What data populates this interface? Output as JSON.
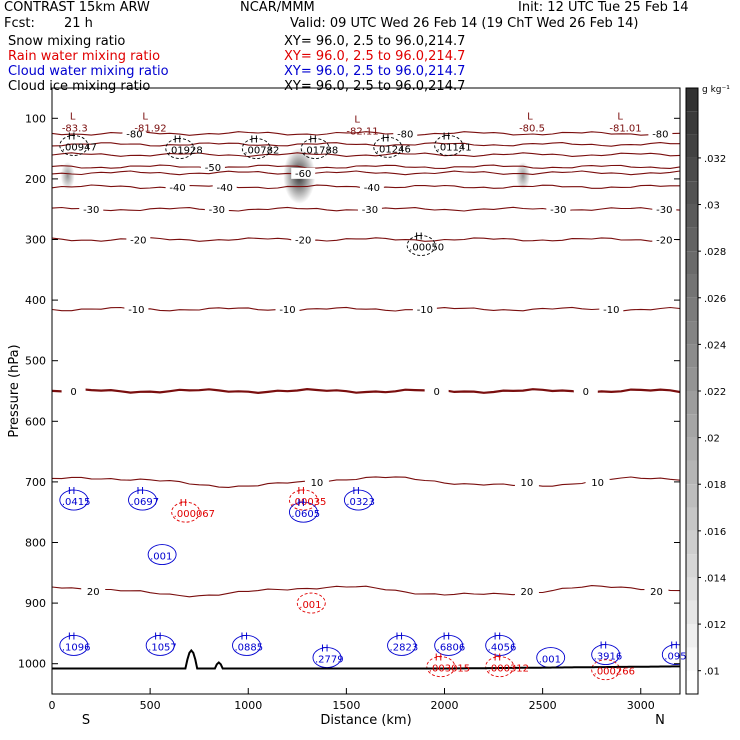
{
  "header": {
    "model": "CONTRAST 15km ARW",
    "org": "NCAR/MMM",
    "init": "Init: 12 UTC Tue 25 Feb 14",
    "fcst_label": "Fcst:",
    "fcst_value": "21 h",
    "valid": "Valid: 09 UTC Wed 26 Feb 14 (19 ChT Wed 26 Feb 14)"
  },
  "fields": [
    {
      "name": "Snow mixing ratio",
      "xy": "XY=  96.0,  2.5 to  96.0,214.7",
      "color": "#000000"
    },
    {
      "name": "Rain water mixing ratio",
      "xy": "XY=  96.0,  2.5 to  96.0,214.7",
      "color": "#e00000"
    },
    {
      "name": "Cloud water mixing ratio",
      "xy": "XY=  96.0,  2.5 to  96.0,214.7",
      "color": "#0000d0"
    },
    {
      "name": "Cloud ice mixing ratio",
      "xy": "XY=  96.0,  2.5 to  96.0,214.7",
      "color": "#000000"
    }
  ],
  "colorbar": {
    "unit": "g kg⁻¹",
    "ticks": [
      ".01",
      ".012",
      ".014",
      ".016",
      ".018",
      ".02",
      ".022",
      ".024",
      ".026",
      ".028",
      ".03",
      ".032"
    ],
    "values": [
      0.01,
      0.012,
      0.014,
      0.016,
      0.018,
      0.02,
      0.022,
      0.024,
      0.026,
      0.028,
      0.03,
      0.032
    ],
    "range": [
      0.009,
      0.035
    ]
  },
  "chart_data": {
    "type": "contour cross-section",
    "xlabel": "Distance (km)",
    "ylabel": "Pressure (hPa)",
    "xlim": [
      0,
      3200
    ],
    "ylim": [
      1050,
      50
    ],
    "x_ticks": [
      0,
      500,
      1000,
      1500,
      2000,
      2500,
      3000
    ],
    "y_ticks": [
      100,
      200,
      300,
      400,
      500,
      600,
      700,
      800,
      900,
      1000
    ],
    "end_labels": {
      "left": "S",
      "right": "N"
    },
    "temperature_contours": [
      {
        "value": -80,
        "label": "-80",
        "p": 125,
        "labels_at": [
          [
            420,
            "-80"
          ],
          [
            1800,
            "-80"
          ],
          [
            3100,
            "-80"
          ]
        ]
      },
      {
        "value": -70,
        "label": "",
        "p": 143
      },
      {
        "value": -60,
        "label": "",
        "p": 160
      },
      {
        "value": -50,
        "label": "-50",
        "p": 180,
        "labels_at": [
          [
            820,
            "-50"
          ]
        ]
      },
      {
        "value": -60,
        "label": "-60",
        "p": 190,
        "labels_at": [
          [
            1280,
            "-60"
          ]
        ]
      },
      {
        "value": -40,
        "label": "-40",
        "p": 213,
        "labels_at": [
          [
            640,
            "-40"
          ],
          [
            880,
            "-40"
          ],
          [
            1630,
            "-40"
          ]
        ]
      },
      {
        "value": -30,
        "label": "-30",
        "p": 250,
        "labels_at": [
          [
            200,
            "-30"
          ],
          [
            840,
            "-30"
          ],
          [
            1620,
            "-30"
          ],
          [
            2580,
            "-30"
          ],
          [
            3120,
            "-30"
          ]
        ]
      },
      {
        "value": -20,
        "label": "-20",
        "p": 300,
        "labels_at": [
          [
            440,
            "-20"
          ],
          [
            1280,
            "-20"
          ],
          [
            3120,
            "-20"
          ]
        ]
      },
      {
        "value": -10,
        "label": "-10",
        "p": 415,
        "labels_at": [
          [
            430,
            "-10"
          ],
          [
            1200,
            "-10"
          ],
          [
            1900,
            "-10"
          ],
          [
            2850,
            "-10"
          ]
        ]
      },
      {
        "value": 0,
        "label": "0",
        "p": 550,
        "labels_at": [
          [
            110,
            "0"
          ],
          [
            1960,
            "0"
          ],
          [
            2720,
            "0"
          ]
        ]
      },
      {
        "value": 10,
        "label": "10",
        "p": 700,
        "labels_at": [
          [
            1350,
            "10"
          ],
          [
            2420,
            "10"
          ],
          [
            2780,
            "10"
          ]
        ]
      },
      {
        "value": 20,
        "label": "20",
        "p": 880,
        "labels_at": [
          [
            210,
            "20"
          ],
          [
            2420,
            "20"
          ],
          [
            3080,
            "20"
          ]
        ]
      }
    ],
    "high_marks": [
      {
        "x": 50,
        "p": 135,
        "value": ".00947",
        "color": "#000000",
        "prefix": "H"
      },
      {
        "x": 590,
        "p": 140,
        "value": ".01928",
        "color": "#000000",
        "prefix": "H"
      },
      {
        "x": 980,
        "p": 140,
        "value": ".00782",
        "color": "#000000",
        "prefix": "H"
      },
      {
        "x": 1280,
        "p": 140,
        "value": ".01788",
        "color": "#000000",
        "prefix": "H"
      },
      {
        "x": 1650,
        "p": 138,
        "value": ".01246",
        "color": "#000000",
        "prefix": "H"
      },
      {
        "x": 1960,
        "p": 135,
        "value": ".01141",
        "color": "#000000",
        "prefix": "H"
      },
      {
        "x": 1820,
        "p": 300,
        "value": ".00050",
        "color": "#000000",
        "prefix": "H"
      },
      {
        "x": 50,
        "p": 720,
        "value": ".0415",
        "color": "#0000d0",
        "prefix": "H"
      },
      {
        "x": 400,
        "p": 720,
        "value": ".0697",
        "color": "#0000d0",
        "prefix": "H"
      },
      {
        "x": 620,
        "p": 740,
        "value": ".000067",
        "color": "#e00000",
        "prefix": "H"
      },
      {
        "x": 1220,
        "p": 720,
        "value": ".00035",
        "color": "#e00000",
        "prefix": "H"
      },
      {
        "x": 1220,
        "p": 740,
        "value": ".0605",
        "color": "#0000d0",
        "prefix": "H"
      },
      {
        "x": 1500,
        "p": 720,
        "value": ".0323",
        "color": "#0000d0",
        "prefix": "H"
      },
      {
        "x": 500,
        "p": 810,
        "value": ".001",
        "color": "#0000d0",
        "prefix": ""
      },
      {
        "x": 1260,
        "p": 890,
        "value": ".001",
        "color": "#e00000",
        "prefix": ""
      },
      {
        "x": 50,
        "p": 960,
        "value": ".1096",
        "color": "#0000d0",
        "prefix": "H"
      },
      {
        "x": 490,
        "p": 960,
        "value": ".1057",
        "color": "#0000d0",
        "prefix": "H"
      },
      {
        "x": 930,
        "p": 960,
        "value": ".0885",
        "color": "#0000d0",
        "prefix": "H"
      },
      {
        "x": 1340,
        "p": 980,
        "value": ".2779",
        "color": "#0000d0",
        "prefix": "H"
      },
      {
        "x": 1720,
        "p": 960,
        "value": ".2823",
        "color": "#0000d0",
        "prefix": "H"
      },
      {
        "x": 1960,
        "p": 960,
        "value": ".6806",
        "color": "#0000d0",
        "prefix": "H"
      },
      {
        "x": 1920,
        "p": 995,
        "value": ".003015",
        "color": "#e00000",
        "prefix": "H"
      },
      {
        "x": 2220,
        "p": 960,
        "value": ".4056",
        "color": "#0000d0",
        "prefix": "H"
      },
      {
        "x": 2220,
        "p": 995,
        "value": ".000312",
        "color": "#e00000",
        "prefix": "H"
      },
      {
        "x": 2480,
        "p": 980,
        "value": ".001",
        "color": "#0000d0",
        "prefix": ""
      },
      {
        "x": 2760,
        "p": 975,
        "value": ".3916",
        "color": "#0000d0",
        "prefix": "H"
      },
      {
        "x": 2760,
        "p": 1000,
        "value": ".000266",
        "color": "#e00000",
        "prefix": ""
      },
      {
        "x": 3120,
        "p": 975,
        "value": ".095",
        "color": "#0000d0",
        "prefix": "H"
      }
    ],
    "low_marks": [
      {
        "x": 50,
        "p": 105,
        "value": "-83.3",
        "prefix": "L"
      },
      {
        "x": 420,
        "p": 105,
        "value": "-81.92",
        "prefix": "L"
      },
      {
        "x": 1500,
        "p": 110,
        "value": "-82.11",
        "prefix": "L"
      },
      {
        "x": 2380,
        "p": 105,
        "value": "-80.5",
        "prefix": "L"
      },
      {
        "x": 2840,
        "p": 105,
        "value": "-81.01",
        "prefix": "L"
      }
    ],
    "shaded_regions": [
      {
        "x": 1260,
        "p": 195,
        "value": 0.026
      },
      {
        "x": 80,
        "p": 195,
        "value": 0.014
      },
      {
        "x": 2400,
        "p": 195,
        "value": 0.014
      }
    ]
  }
}
